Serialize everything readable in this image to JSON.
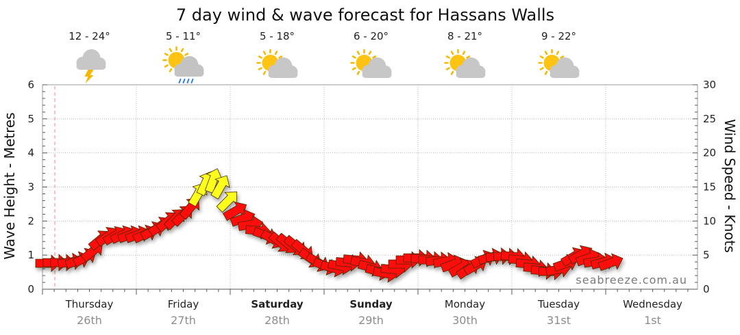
{
  "chart_data": {
    "type": "line",
    "title": "7 day wind & wave forecast for Hassans Walls",
    "y_left_label": "Wave Height - Metres",
    "y_right_label": "Wind Speed - Knots",
    "y_left_ticks": [
      "0",
      "1",
      "2",
      "3",
      "4",
      "5",
      "6"
    ],
    "y_right_ticks": [
      "0",
      "5",
      "10",
      "15",
      "20",
      "25",
      "30"
    ],
    "y_left_range": [
      0,
      6
    ],
    "y_right_range": [
      0,
      30
    ],
    "grid": true,
    "days": [
      {
        "day": "Thursday",
        "date": "26th",
        "bold": false
      },
      {
        "day": "Friday",
        "date": "27th",
        "bold": false
      },
      {
        "day": "Saturday",
        "date": "28th",
        "bold": true
      },
      {
        "day": "Sunday",
        "date": "29th",
        "bold": true
      },
      {
        "day": "Monday",
        "date": "30th",
        "bold": false
      },
      {
        "day": "Tuesday",
        "date": "31st",
        "bold": false
      },
      {
        "day": "Wednesday",
        "date": "1st",
        "bold": false
      }
    ],
    "weather": [
      {
        "temp": "12 - 24°",
        "icon": "storm-cloud-icon"
      },
      {
        "temp": "5 - 11°",
        "icon": "sun-rain-cloud-icon"
      },
      {
        "temp": "5 - 18°",
        "icon": "partly-cloudy-icon"
      },
      {
        "temp": "6 - 20°",
        "icon": "partly-cloudy-icon"
      },
      {
        "temp": "8 - 21°",
        "icon": "partly-cloudy-icon"
      },
      {
        "temp": "9 - 22°",
        "icon": "partly-cloudy-icon"
      }
    ],
    "wind_series": {
      "name": "Wind Speed",
      "x_days": [
        0.0,
        0.08,
        0.16,
        0.24,
        0.32,
        0.4,
        0.48,
        0.56,
        0.64,
        0.72,
        0.8,
        0.88,
        0.96,
        1.04,
        1.12,
        1.2,
        1.28,
        1.36,
        1.44,
        1.52,
        1.6,
        1.68,
        1.76,
        1.84,
        1.92,
        2.0,
        2.08,
        2.16,
        2.24,
        2.32,
        2.4,
        2.48,
        2.56,
        2.64,
        2.72,
        2.8,
        2.88,
        2.96,
        3.04,
        3.12,
        3.2,
        3.28,
        3.36,
        3.44,
        3.52,
        3.6,
        3.68,
        3.76,
        3.84,
        3.92,
        4.0,
        4.08,
        4.16,
        4.24,
        4.32,
        4.4,
        4.48,
        4.56,
        4.64,
        4.72,
        4.8,
        4.88,
        4.96,
        5.04,
        5.12,
        5.2,
        5.28,
        5.36,
        5.44,
        5.52,
        5.6,
        5.68,
        5.76,
        5.84,
        5.92,
        6.0
      ],
      "knots": [
        3.8,
        3.9,
        3.9,
        4.0,
        4.2,
        4.7,
        5.6,
        7.3,
        7.8,
        7.9,
        8.0,
        8.0,
        8.0,
        8.1,
        8.6,
        9.3,
        10.0,
        10.4,
        10.9,
        12.0,
        14.0,
        15.6,
        16.0,
        15.1,
        13.0,
        11.5,
        10.4,
        9.5,
        8.6,
        7.9,
        7.3,
        6.8,
        6.6,
        6.3,
        5.7,
        4.5,
        3.9,
        3.4,
        3.1,
        3.4,
        3.9,
        4.3,
        3.9,
        3.2,
        2.6,
        2.3,
        2.9,
        3.7,
        4.3,
        4.6,
        4.5,
        4.3,
        4.2,
        4.1,
        3.7,
        3.2,
        3.0,
        3.5,
        4.4,
        4.7,
        4.8,
        4.8,
        4.8,
        4.3,
        3.7,
        3.1,
        2.7,
        2.6,
        2.9,
        3.8,
        4.8,
        5.1,
        4.6,
        4.1,
        4.0,
        3.9
      ],
      "direction_deg": [
        90,
        90,
        90,
        80,
        70,
        60,
        50,
        50,
        55,
        60,
        65,
        70,
        70,
        65,
        60,
        55,
        50,
        45,
        45,
        40,
        30,
        25,
        20,
        30,
        45,
        60,
        70,
        80,
        95,
        110,
        120,
        130,
        130,
        130,
        130,
        125,
        120,
        110,
        105,
        100,
        95,
        95,
        100,
        105,
        105,
        100,
        95,
        90,
        90,
        90,
        90,
        90,
        85,
        80,
        70,
        60,
        55,
        60,
        65,
        75,
        85,
        90,
        95,
        95,
        95,
        95,
        95,
        90,
        80,
        70,
        60,
        60,
        70,
        80,
        75,
        70
      ]
    },
    "legend": "none",
    "watermark": "seabreeze.com.au"
  }
}
